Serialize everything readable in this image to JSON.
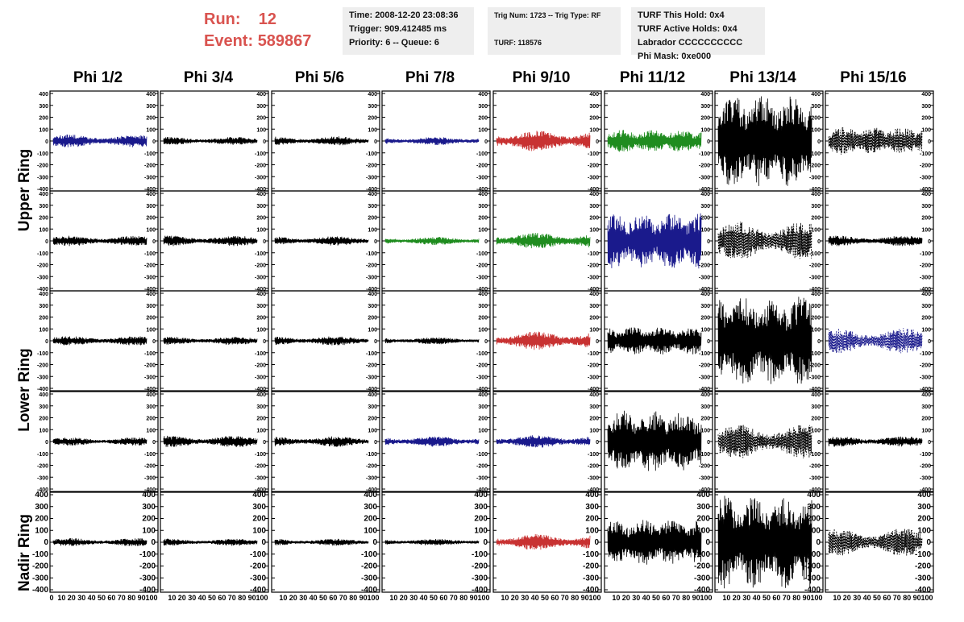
{
  "header": {
    "run_label": "Run:",
    "run_value": "12",
    "event_label": "Event:",
    "event_value": "589867",
    "time": "Time: 2008-12-20 23:08:36",
    "trigger": "Trigger: 909.412485 ms",
    "priority": "Priority: 6 -- Queue: 6",
    "trig_info": "Trig Num: 1723 -- Trig Type: RF",
    "turf": "TURF: 118576",
    "turf_hold": "TURF This Hold: 0x4",
    "turf_active": "TURF Active Holds: 0x4",
    "labrador": "Labrador CCCCCCCCCC",
    "phi_mask": "Phi Mask: 0xe000"
  },
  "columns": [
    "Phi 1/2",
    "Phi 3/4",
    "Phi 5/6",
    "Phi 7/8",
    "Phi 9/10",
    "Phi 11/12",
    "Phi 13/14",
    "Phi 15/16"
  ],
  "ring_labels": {
    "upper": "Upper Ring",
    "lower": "Lower Ring",
    "nadir": "Nadir Ring"
  },
  "y_ticks": [
    "400",
    "300",
    "200",
    "100",
    "0",
    "-100",
    "-200",
    "-300",
    "-400"
  ],
  "x_ticks": [
    "0",
    "10",
    "20",
    "30",
    "40",
    "50",
    "60",
    "70",
    "80",
    "90",
    "100"
  ],
  "colors": {
    "accent_red_text": "#d9534f",
    "blue": "#1a1a8c",
    "red": "#c83232",
    "green": "#1f8c1f",
    "black": "#000000"
  },
  "panels": [
    [
      "blue",
      "black",
      "black",
      "blue",
      "red",
      "green",
      "black",
      "black-dashed"
    ],
    [
      "black",
      "black",
      "black",
      "green",
      "green",
      "blue",
      "black-dashed",
      "black"
    ],
    [
      "black",
      "black",
      "black",
      "black",
      "red",
      "black",
      "black",
      "blue-dashed"
    ],
    [
      "black",
      "black",
      "black",
      "blue",
      "blue",
      "black",
      "black-dashed",
      "black"
    ],
    [
      "black",
      "black",
      "black",
      "black",
      "red",
      "black",
      "black",
      "black-dashed"
    ]
  ],
  "amplitudes": [
    [
      55,
      35,
      40,
      35,
      90,
      95,
      400,
      120
    ],
    [
      45,
      45,
      40,
      35,
      70,
      240,
      170,
      45
    ],
    [
      40,
      35,
      40,
      30,
      80,
      120,
      390,
      110
    ],
    [
      35,
      50,
      45,
      45,
      55,
      270,
      150,
      45
    ],
    [
      35,
      30,
      30,
      30,
      70,
      200,
      400,
      120
    ]
  ]
}
